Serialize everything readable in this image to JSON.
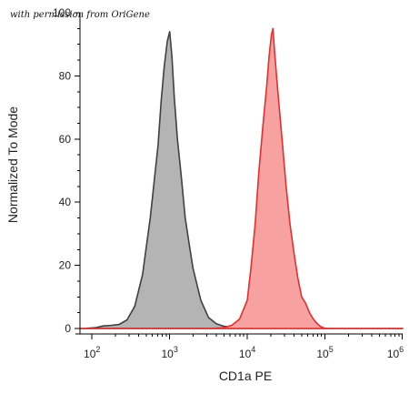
{
  "watermark": "with permission from OriGene",
  "chart_data": {
    "type": "area",
    "title": "",
    "xlabel": "CD1a PE",
    "ylabel": "Normalized To Mode",
    "x_scale": "log",
    "xlim": [
      70,
      1000000
    ],
    "ylim": [
      0,
      100
    ],
    "x_ticks": [
      {
        "base": "10",
        "exp": "2",
        "value": 100
      },
      {
        "base": "10",
        "exp": "3",
        "value": 1000
      },
      {
        "base": "10",
        "exp": "4",
        "value": 10000
      },
      {
        "base": "10",
        "exp": "5",
        "value": 100000
      },
      {
        "base": "10",
        "exp": "6",
        "value": 1000000
      }
    ],
    "y_ticks": [
      "0",
      "20",
      "40",
      "60",
      "80",
      "100"
    ],
    "y_tick_values": [
      0,
      20,
      40,
      60,
      80,
      100
    ],
    "grid": false,
    "legend": "none",
    "series": [
      {
        "fill": "#b4b4b4",
        "stroke": "#404040",
        "points": [
          [
            70,
            0
          ],
          [
            79,
            0
          ],
          [
            112,
            0.3
          ],
          [
            140,
            0.8
          ],
          [
            180,
            1
          ],
          [
            224,
            1.3
          ],
          [
            282,
            2.7
          ],
          [
            355,
            7
          ],
          [
            447,
            17
          ],
          [
            562,
            35
          ],
          [
            708,
            58
          ],
          [
            776,
            72
          ],
          [
            851,
            83
          ],
          [
            933,
            91
          ],
          [
            1000,
            94
          ],
          [
            1071,
            86
          ],
          [
            1148,
            73
          ],
          [
            1259,
            60
          ],
          [
            1413,
            48
          ],
          [
            1585,
            35
          ],
          [
            1778,
            27
          ],
          [
            2000,
            19
          ],
          [
            2512,
            9
          ],
          [
            3162,
            3.5
          ],
          [
            3981,
            1.5
          ],
          [
            5012,
            0.7
          ],
          [
            7079,
            0.2
          ],
          [
            10000,
            0
          ],
          [
            1000000,
            0
          ]
        ]
      },
      {
        "fill": "#f7a1a1",
        "stroke": "#e03030",
        "points": [
          [
            70,
            0
          ],
          [
            3548,
            0
          ],
          [
            5012,
            0.3
          ],
          [
            6310,
            1
          ],
          [
            7943,
            3
          ],
          [
            10000,
            9
          ],
          [
            11220,
            20
          ],
          [
            12589,
            33
          ],
          [
            14125,
            50
          ],
          [
            15849,
            64
          ],
          [
            17783,
            77
          ],
          [
            19055,
            86
          ],
          [
            20417,
            93
          ],
          [
            21380,
            95
          ],
          [
            22387,
            88
          ],
          [
            24547,
            76
          ],
          [
            28184,
            59
          ],
          [
            31623,
            45
          ],
          [
            35481,
            33
          ],
          [
            39811,
            24
          ],
          [
            44668,
            16
          ],
          [
            50119,
            10
          ],
          [
            56234,
            8
          ],
          [
            63096,
            5
          ],
          [
            70795,
            3
          ],
          [
            79433,
            1.5
          ],
          [
            89125,
            0.5
          ],
          [
            100000,
            0.1
          ],
          [
            112202,
            0
          ],
          [
            1000000,
            0
          ]
        ]
      }
    ]
  }
}
